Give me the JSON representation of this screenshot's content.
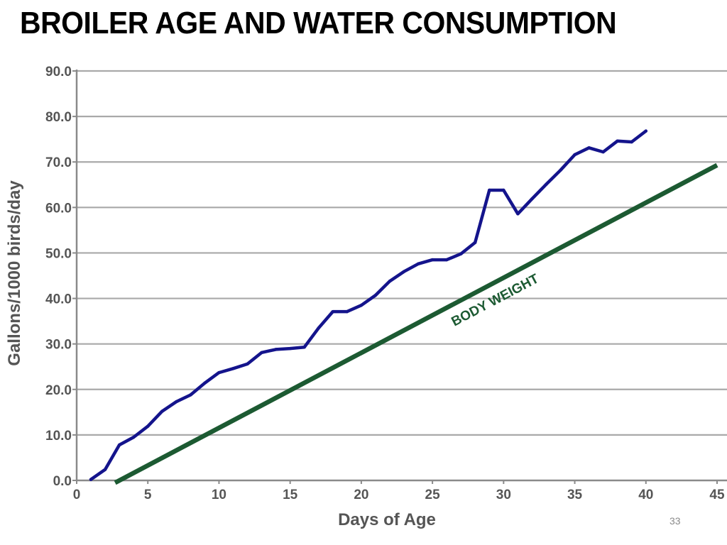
{
  "slide": {
    "title": "BROILER AGE AND WATER CONSUMPTION",
    "page_number": "33"
  },
  "chart_data": {
    "type": "line",
    "xlabel": "Days of Age",
    "ylabel": "Gallons/1000 birds/day",
    "xlim": [
      0,
      45
    ],
    "ylim": [
      0,
      90
    ],
    "x_ticks": [
      "0",
      "5",
      "10",
      "15",
      "20",
      "25",
      "30",
      "35",
      "40",
      "45"
    ],
    "y_ticks": [
      "0.0",
      "10.0",
      "20.0",
      "30.0",
      "40.0",
      "50.0",
      "60.0",
      "70.0",
      "80.0",
      "90.0"
    ],
    "grid": "horizontal",
    "series": [
      {
        "color": "#14148c",
        "x": [
          1,
          2,
          3,
          4,
          5,
          6,
          7,
          8,
          9,
          10,
          11,
          12,
          13,
          14,
          15,
          16,
          17,
          18,
          19,
          20,
          21,
          22,
          23,
          24,
          25,
          26,
          27,
          28,
          29,
          30,
          31,
          32,
          33,
          34,
          35,
          36,
          37,
          38,
          39,
          40
        ],
        "y": [
          0.2,
          2.4,
          7.8,
          9.5,
          11.9,
          15.2,
          17.3,
          18.8,
          21.4,
          23.7,
          24.6,
          25.6,
          28.1,
          28.8,
          29.0,
          29.3,
          33.5,
          37.1,
          37.1,
          38.5,
          40.7,
          43.8,
          45.9,
          47.6,
          48.5,
          48.5,
          49.8,
          52.3,
          63.8,
          63.8,
          58.6,
          61.9,
          65.1,
          68.2,
          71.6,
          73.1,
          72.2,
          74.6,
          74.4,
          76.8
        ]
      }
    ],
    "trend_line": {
      "label": "BODY WEIGHT",
      "color": "#1c5a32",
      "x": [
        2.7,
        45
      ],
      "y": [
        -0.5,
        69.3
      ]
    }
  }
}
